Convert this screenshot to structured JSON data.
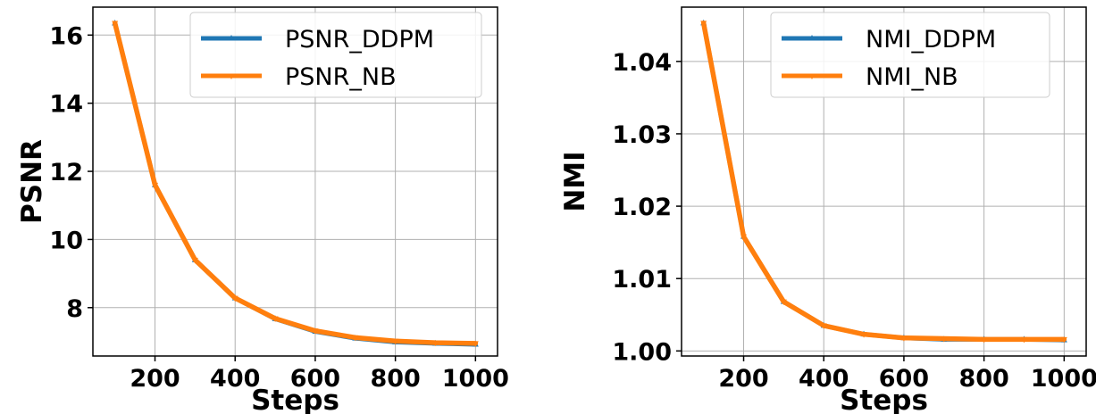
{
  "chart_data": [
    {
      "type": "line",
      "xlabel": "Steps",
      "ylabel": "PSNR",
      "x": [
        100,
        200,
        300,
        400,
        500,
        600,
        700,
        800,
        900,
        1000
      ],
      "xlim": [
        45,
        1055
      ],
      "ylim": [
        6.58,
        16.82
      ],
      "xticks": [
        200,
        400,
        600,
        800,
        1000
      ],
      "xtick_labels": [
        "200",
        "400",
        "600",
        "800",
        "1000"
      ],
      "yticks": [
        8,
        10,
        12,
        14,
        16
      ],
      "ytick_labels": [
        "8",
        "10",
        "12",
        "14",
        "16"
      ],
      "grid": true,
      "legend_position": "upper right",
      "series": [
        {
          "name": "PSNR_DDPM",
          "color": "#1f77b4",
          "marker": "triangle-up",
          "values": [
            16.35,
            11.6,
            9.4,
            8.28,
            7.67,
            7.3,
            7.1,
            6.99,
            6.95,
            6.92
          ]
        },
        {
          "name": "PSNR_NB",
          "color": "#ff7f0e",
          "marker": "triangle-down",
          "values": [
            16.35,
            11.6,
            9.4,
            8.28,
            7.68,
            7.32,
            7.12,
            7.02,
            6.97,
            6.95
          ]
        }
      ]
    },
    {
      "type": "line",
      "xlabel": "Steps",
      "ylabel": "NMI",
      "x": [
        100,
        200,
        300,
        400,
        500,
        600,
        700,
        800,
        900,
        1000
      ],
      "xlim": [
        45,
        1055
      ],
      "ylim": [
        0.9993,
        1.0475
      ],
      "xticks": [
        200,
        400,
        600,
        800,
        1000
      ],
      "xtick_labels": [
        "200",
        "400",
        "600",
        "800",
        "1000"
      ],
      "yticks": [
        1.0,
        1.01,
        1.02,
        1.03,
        1.04
      ],
      "ytick_labels": [
        "1.00",
        "1.01",
        "1.02",
        "1.03",
        "1.04"
      ],
      "grid": true,
      "legend_position": "upper right",
      "series": [
        {
          "name": "NMI_DDPM",
          "color": "#1f77b4",
          "marker": "triangle-up",
          "values": [
            1.0453,
            1.0158,
            1.0068,
            1.0035,
            1.0023,
            1.0018,
            1.0016,
            1.0016,
            1.0016,
            1.0015
          ]
        },
        {
          "name": "NMI_NB",
          "color": "#ff7f0e",
          "marker": "triangle-down",
          "values": [
            1.0453,
            1.0158,
            1.0068,
            1.0035,
            1.0023,
            1.0018,
            1.0017,
            1.0016,
            1.0016,
            1.0016
          ]
        }
      ]
    }
  ]
}
